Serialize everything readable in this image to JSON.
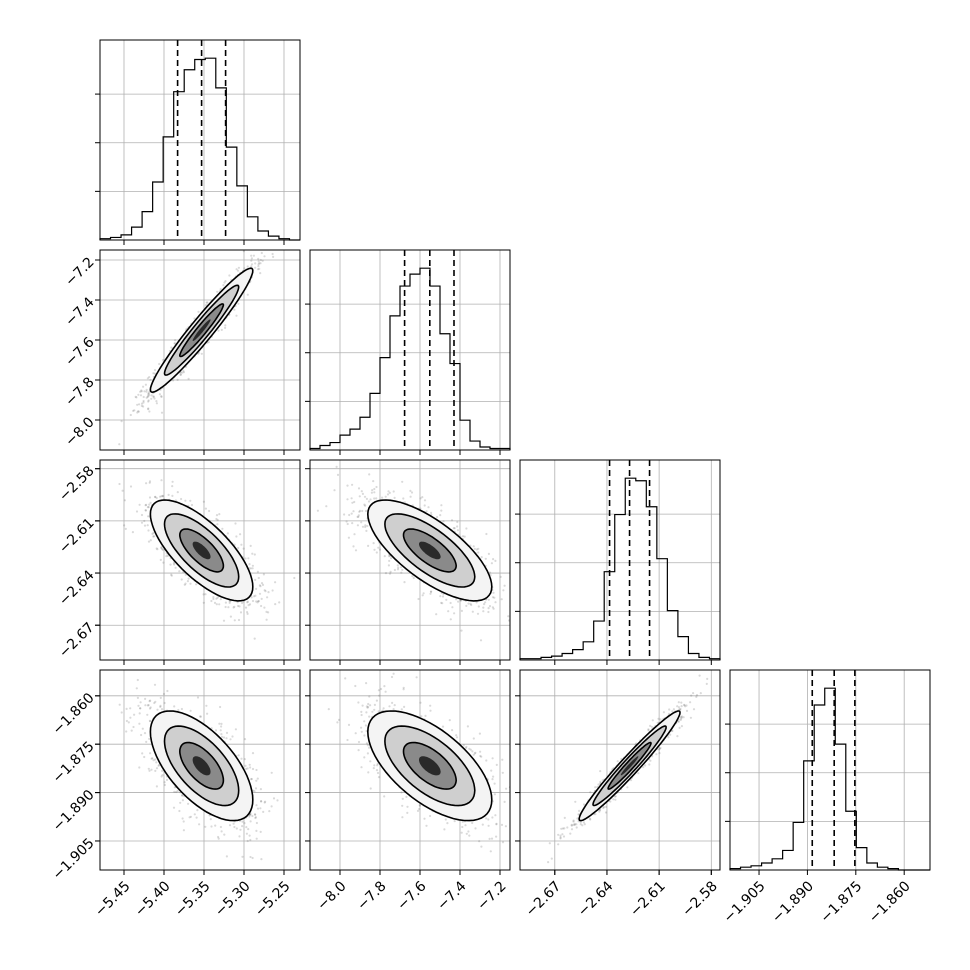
{
  "chart_data": {
    "type": "corner",
    "parameters": [
      {
        "range": [
          -5.48,
          -5.23
        ],
        "ticks": [
          -5.45,
          -5.4,
          -5.35,
          -5.3,
          -5.25
        ],
        "tick_labels": [
          "−5.45",
          "−5.40",
          "−5.35",
          "−5.30",
          "−5.25"
        ],
        "quantiles": [
          -5.383,
          -5.353,
          -5.323
        ],
        "histogram": [
          1,
          2,
          4,
          10,
          22,
          45,
          80,
          115,
          132,
          140,
          141,
          118,
          72,
          42,
          18,
          7,
          3,
          1,
          0
        ]
      },
      {
        "range": [
          -8.15,
          -7.15
        ],
        "ticks": [
          -8.0,
          -7.8,
          -7.6,
          -7.4,
          -7.2
        ],
        "tick_labels": [
          "−8.0",
          "−7.8",
          "−7.6",
          "−7.4",
          "−7.2"
        ],
        "quantiles": [
          -7.677,
          -7.551,
          -7.43
        ],
        "histogram": [
          1,
          3,
          5,
          10,
          14,
          22,
          38,
          62,
          90,
          110,
          118,
          122,
          110,
          78,
          58,
          20,
          6,
          2,
          1,
          1
        ]
      },
      {
        "range": [
          -2.69,
          -2.575
        ],
        "ticks": [
          -2.67,
          -2.64,
          -2.61,
          -2.58
        ],
        "tick_labels": [
          "−2.67",
          "−2.64",
          "−2.61",
          "−2.58"
        ],
        "quantiles": [
          -2.6385,
          -2.627,
          -2.6155
        ],
        "histogram": [
          1,
          1,
          2,
          3,
          5,
          8,
          14,
          30,
          68,
          112,
          140,
          138,
          118,
          78,
          38,
          18,
          5,
          2,
          1
        ]
      },
      {
        "range": [
          -1.914,
          -1.852
        ],
        "ticks": [
          -1.905,
          -1.89,
          -1.875,
          -1.86
        ],
        "tick_labels": [
          "−1.905",
          "−1.890",
          "−1.875",
          "−1.860"
        ],
        "quantiles": [
          -1.8885,
          -1.8817,
          -1.8753
        ],
        "histogram": [
          1,
          2,
          3,
          5,
          8,
          14,
          34,
          78,
          118,
          130,
          90,
          42,
          16,
          5,
          2,
          1,
          0,
          0,
          0
        ]
      }
    ],
    "pairs": [
      {
        "row": 1,
        "col": 0,
        "center": [
          -5.353,
          -7.551
        ],
        "sigma": [
          0.032,
          0.155
        ],
        "rho": 0.96
      },
      {
        "row": 2,
        "col": 0,
        "center": [
          -5.353,
          -2.627
        ],
        "sigma": [
          0.032,
          0.0145
        ],
        "rho": -0.72
      },
      {
        "row": 2,
        "col": 1,
        "center": [
          -7.551,
          -2.627
        ],
        "sigma": [
          0.155,
          0.0145
        ],
        "rho": -0.72
      },
      {
        "row": 3,
        "col": 0,
        "center": [
          -5.353,
          -1.8817
        ],
        "sigma": [
          0.032,
          0.0085
        ],
        "rho": -0.62
      },
      {
        "row": 3,
        "col": 1,
        "center": [
          -7.551,
          -1.8817
        ],
        "sigma": [
          0.155,
          0.0085
        ],
        "rho": -0.62
      },
      {
        "row": 3,
        "col": 2,
        "center": [
          -2.627,
          -1.8817
        ],
        "sigma": [
          0.0145,
          0.0085
        ],
        "rho": 0.97
      }
    ],
    "grid": true
  }
}
